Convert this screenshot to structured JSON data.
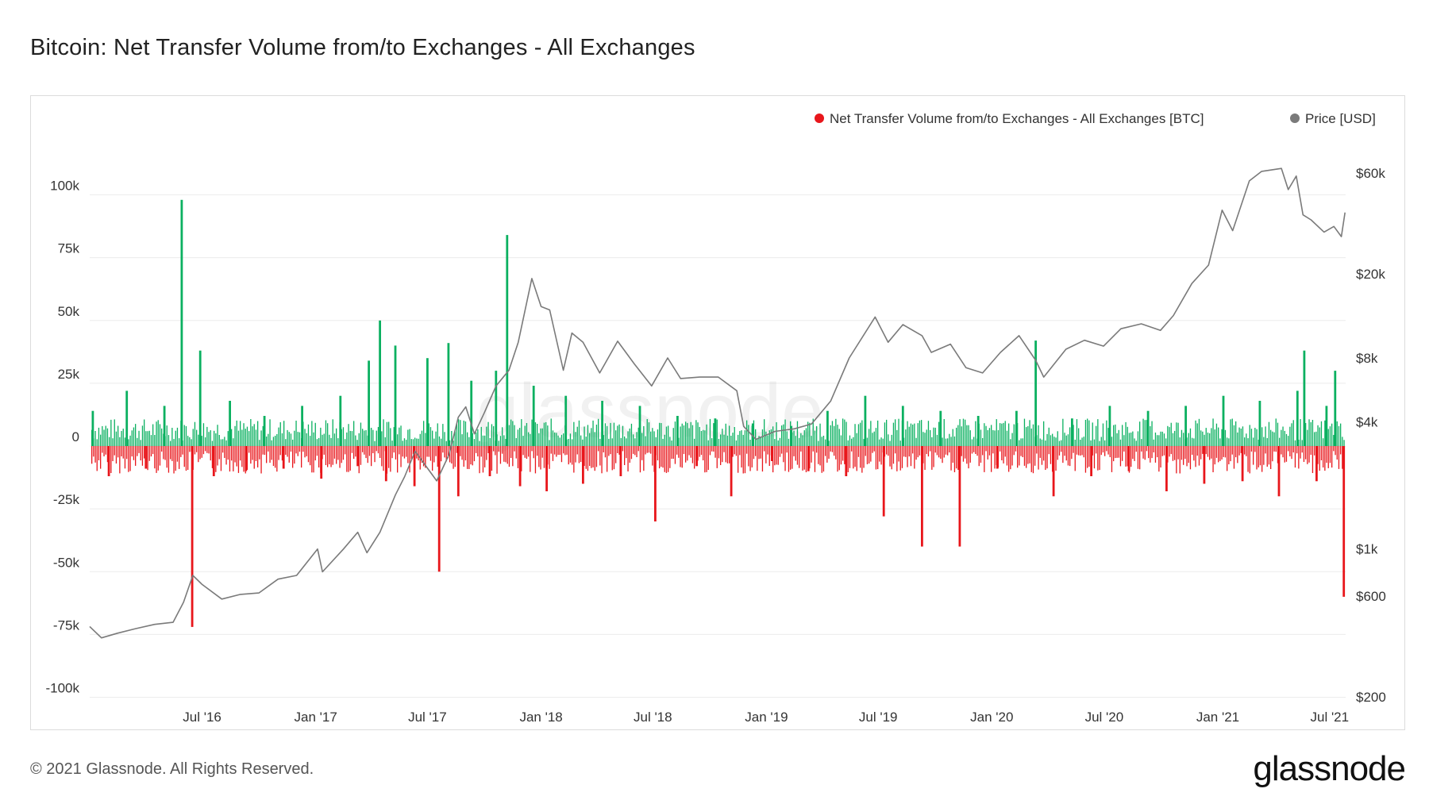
{
  "header": {
    "title": "Bitcoin: Net Transfer Volume from/to Exchanges - All Exchanges"
  },
  "footer": {
    "copyright": "© 2021 Glassnode. All Rights Reserved.",
    "brand": "glassnode"
  },
  "watermark": "glassnode",
  "colors": {
    "inflow_positive": "#0bb060",
    "outflow_negative": "#e8161b",
    "price_line": "#7a7a7a",
    "grid": "#ececec"
  },
  "chart_data": {
    "type": "bar",
    "title": "Bitcoin: Net Transfer Volume from/to Exchanges - All Exchanges",
    "legend": {
      "placement": "top-right",
      "entries": [
        {
          "name": "Net Transfer Volume from/to Exchanges - All Exchanges [BTC]",
          "color": "#e8161b"
        },
        {
          "name": "Price [USD]",
          "color": "#7a7a7a"
        }
      ]
    },
    "x_axis": {
      "range": [
        "2016-01-01",
        "2021-07-27"
      ],
      "ticks": [
        {
          "date": "2016-07-01",
          "label": "Jul '16"
        },
        {
          "date": "2017-01-01",
          "label": "Jan '17"
        },
        {
          "date": "2017-07-01",
          "label": "Jul '17"
        },
        {
          "date": "2018-01-01",
          "label": "Jan '18"
        },
        {
          "date": "2018-07-01",
          "label": "Jul '18"
        },
        {
          "date": "2019-01-01",
          "label": "Jan '19"
        },
        {
          "date": "2019-07-01",
          "label": "Jul '19"
        },
        {
          "date": "2020-01-01",
          "label": "Jan '20"
        },
        {
          "date": "2020-07-01",
          "label": "Jul '20"
        },
        {
          "date": "2021-01-01",
          "label": "Jan '21"
        },
        {
          "date": "2021-07-01",
          "label": "Jul '21"
        }
      ]
    },
    "y_left": {
      "range": [
        -100000,
        100000
      ],
      "ticks": [
        {
          "value": 100000,
          "label": "100k"
        },
        {
          "value": 75000,
          "label": "75k"
        },
        {
          "value": 50000,
          "label": "50k"
        },
        {
          "value": 25000,
          "label": "25k"
        },
        {
          "value": 0,
          "label": "0"
        },
        {
          "value": -25000,
          "label": "-25k"
        },
        {
          "value": -50000,
          "label": "-50k"
        },
        {
          "value": -75000,
          "label": "-75k"
        },
        {
          "value": -100000,
          "label": "-100k"
        }
      ]
    },
    "y_right": {
      "scale": "log",
      "range": [
        200,
        70000
      ],
      "ticks": [
        {
          "value": 60000,
          "label": "$60k"
        },
        {
          "value": 20000,
          "label": "$20k"
        },
        {
          "value": 8000,
          "label": "$8k"
        },
        {
          "value": 4000,
          "label": "$4k"
        },
        {
          "value": 1000,
          "label": "$1k"
        },
        {
          "value": 600,
          "label": "$600"
        },
        {
          "value": 200,
          "label": "$200"
        }
      ]
    },
    "grid": true,
    "bars_note": "Weekly-sampled representative net transfer volume (BTC); positive = net inflow (green), negative = net outflow (red)",
    "series": [
      {
        "name": "Net Transfer Volume from/to Exchanges - All Exchanges [BTC]",
        "kind": "bar",
        "x": [
          "2016-01-06",
          "2016-02-01",
          "2016-03-01",
          "2016-04-01",
          "2016-05-01",
          "2016-05-29",
          "2016-06-15",
          "2016-06-28",
          "2016-07-20",
          "2016-08-15",
          "2016-09-10",
          "2016-10-10",
          "2016-11-10",
          "2016-12-10",
          "2017-01-10",
          "2017-02-10",
          "2017-03-10",
          "2017-03-28",
          "2017-04-15",
          "2017-04-25",
          "2017-05-10",
          "2017-06-10",
          "2017-07-01",
          "2017-07-20",
          "2017-08-04",
          "2017-08-20",
          "2017-09-10",
          "2017-10-10",
          "2017-10-20",
          "2017-11-07",
          "2017-11-28",
          "2017-12-20",
          "2018-01-10",
          "2018-02-10",
          "2018-03-10",
          "2018-04-10",
          "2018-05-10",
          "2018-06-10",
          "2018-07-05",
          "2018-08-10",
          "2018-09-10",
          "2018-10-10",
          "2018-11-05",
          "2018-12-10",
          "2019-01-10",
          "2019-02-10",
          "2019-03-10",
          "2019-04-10",
          "2019-05-10",
          "2019-06-10",
          "2019-07-10",
          "2019-08-10",
          "2019-09-10",
          "2019-10-10",
          "2019-11-10",
          "2019-12-10",
          "2020-01-10",
          "2020-02-10",
          "2020-03-12",
          "2020-04-10",
          "2020-05-10",
          "2020-06-10",
          "2020-07-10",
          "2020-08-10",
          "2020-09-10",
          "2020-10-10",
          "2020-11-10",
          "2020-12-10",
          "2021-01-10",
          "2021-02-10",
          "2021-03-10",
          "2021-04-10",
          "2021-05-10",
          "2021-05-21",
          "2021-06-10",
          "2021-06-26",
          "2021-07-10",
          "2021-07-24"
        ],
        "values": [
          14000,
          -12000,
          22000,
          -9000,
          16000,
          98000,
          -72000,
          38000,
          -12000,
          18000,
          -10000,
          12000,
          -9000,
          16000,
          -13000,
          20000,
          -8000,
          34000,
          50000,
          -14000,
          40000,
          -16000,
          35000,
          -50000,
          41000,
          -20000,
          26000,
          -12000,
          30000,
          84000,
          -16000,
          24000,
          -18000,
          20000,
          -15000,
          18000,
          -12000,
          16000,
          -30000,
          12000,
          -8000,
          11000,
          -20000,
          9000,
          -6000,
          8000,
          -10000,
          14000,
          -12000,
          20000,
          -28000,
          16000,
          -40000,
          14000,
          -40000,
          12000,
          -9000,
          14000,
          42000,
          -20000,
          11000,
          -12000,
          16000,
          -10000,
          14000,
          -18000,
          16000,
          -15000,
          20000,
          -14000,
          18000,
          -20000,
          22000,
          38000,
          -14000,
          16000,
          30000,
          -60000
        ]
      },
      {
        "name": "Price [USD]",
        "kind": "line",
        "x": [
          "2016-01-01",
          "2016-01-20",
          "2016-02-15",
          "2016-03-15",
          "2016-04-15",
          "2016-05-15",
          "2016-06-01",
          "2016-06-16",
          "2016-07-01",
          "2016-08-02",
          "2016-09-01",
          "2016-10-01",
          "2016-11-01",
          "2016-12-01",
          "2017-01-04",
          "2017-01-12",
          "2017-02-15",
          "2017-03-10",
          "2017-03-25",
          "2017-04-15",
          "2017-05-10",
          "2017-05-25",
          "2017-06-11",
          "2017-07-16",
          "2017-08-05",
          "2017-08-20",
          "2017-09-01",
          "2017-09-15",
          "2017-10-01",
          "2017-10-20",
          "2017-11-10",
          "2017-11-25",
          "2017-12-17",
          "2018-01-01",
          "2018-01-15",
          "2018-02-06",
          "2018-02-20",
          "2018-03-10",
          "2018-04-06",
          "2018-05-05",
          "2018-06-01",
          "2018-06-29",
          "2018-07-25",
          "2018-08-15",
          "2018-09-15",
          "2018-10-15",
          "2018-11-14",
          "2018-11-25",
          "2018-12-15",
          "2019-01-15",
          "2019-02-15",
          "2019-03-15",
          "2019-04-15",
          "2019-05-15",
          "2019-06-26",
          "2019-07-17",
          "2019-08-10",
          "2019-09-10",
          "2019-09-25",
          "2019-10-26",
          "2019-11-20",
          "2019-12-17",
          "2020-01-15",
          "2020-02-14",
          "2020-03-12",
          "2020-03-25",
          "2020-04-30",
          "2020-05-30",
          "2020-06-30",
          "2020-07-28",
          "2020-08-30",
          "2020-09-30",
          "2020-10-21",
          "2020-11-20",
          "2020-12-17",
          "2021-01-08",
          "2021-01-25",
          "2021-02-21",
          "2021-03-13",
          "2021-04-14",
          "2021-04-25",
          "2021-05-08",
          "2021-05-19",
          "2021-06-01",
          "2021-06-22",
          "2021-07-08",
          "2021-07-20",
          "2021-07-26"
        ],
        "values": [
          430,
          380,
          400,
          420,
          440,
          450,
          560,
          750,
          680,
          580,
          610,
          620,
          720,
          750,
          1000,
          780,
          1000,
          1200,
          960,
          1200,
          1800,
          2200,
          2900,
          2100,
          2800,
          4200,
          4700,
          3500,
          4400,
          5900,
          7000,
          9500,
          19000,
          14000,
          13500,
          7000,
          10500,
          9500,
          6800,
          9600,
          7500,
          5900,
          8000,
          6400,
          6500,
          6500,
          5600,
          3800,
          3300,
          3600,
          3700,
          3900,
          5000,
          8000,
          12500,
          9500,
          11500,
          10200,
          8500,
          9300,
          7200,
          6800,
          8500,
          10200,
          7800,
          6500,
          8800,
          9700,
          9100,
          11000,
          11600,
          10800,
          12700,
          18000,
          22000,
          40000,
          32000,
          55000,
          61000,
          63000,
          50000,
          58000,
          38000,
          36000,
          31500,
          33500,
          30000,
          39000
        ]
      }
    ]
  }
}
